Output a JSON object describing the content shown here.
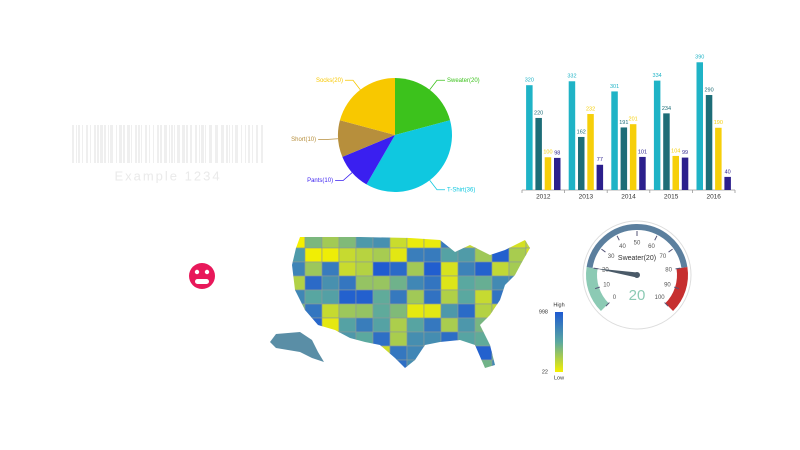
{
  "barcode": {
    "text": "Example 1234"
  },
  "chart_data": [
    {
      "type": "pie",
      "categories": [
        "Sweater(20)",
        "T-Shirt(36)",
        "Pants(10)",
        "Short(10)",
        "Socks(20)"
      ],
      "values": [
        20,
        36,
        10,
        10,
        20
      ],
      "colors": [
        "#3cc21c",
        "#0fc8e0",
        "#3a1ff0",
        "#b78f3c",
        "#f8c800"
      ]
    },
    {
      "type": "bar",
      "categories": [
        "2012",
        "2013",
        "2014",
        "2015",
        "2016"
      ],
      "series": [
        {
          "color": "#1fb3c6",
          "values": [
            320,
            332,
            301,
            334,
            390
          ]
        },
        {
          "color": "#1d6d77",
          "values": [
            220,
            162,
            191,
            234,
            290
          ]
        },
        {
          "color": "#f6cf0a",
          "values": [
            100,
            232,
            201,
            104,
            190
          ]
        },
        {
          "color": "#2b1f8c",
          "values": [
            98,
            77,
            101,
            99,
            40
          ]
        }
      ],
      "ylim": [
        0,
        400
      ]
    },
    {
      "type": "map",
      "legend_high": "High",
      "legend_low": "Low",
      "clim": [
        22,
        998
      ],
      "colors": [
        "#f5f000",
        "#5aa8a0",
        "#1e5ad2"
      ]
    },
    {
      "type": "gauge",
      "label": "Sweater(20)",
      "value": 20,
      "xlim": [
        0,
        100
      ],
      "xticks": [
        0,
        10,
        20,
        30,
        40,
        50,
        60,
        70,
        80,
        90,
        100
      ],
      "bands": [
        {
          "from": 0,
          "to": 20,
          "color": "#8ccab4"
        },
        {
          "from": 20,
          "to": 80,
          "color": "#5b7f9e"
        },
        {
          "from": 80,
          "to": 100,
          "color": "#c62f2f"
        }
      ]
    }
  ]
}
